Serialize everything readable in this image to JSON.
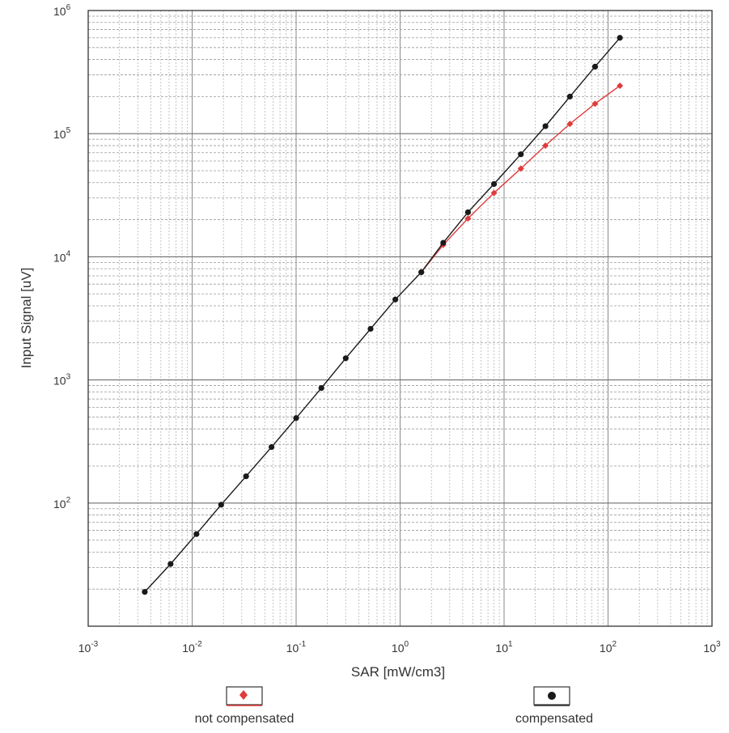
{
  "chart_data": {
    "type": "scatter",
    "x_scale": "log",
    "y_scale": "log",
    "xlim": [
      0.001,
      1000
    ],
    "ylim": [
      10,
      1000000
    ],
    "grid": true,
    "legend_position": "bottom",
    "xlabel": "SAR [mW/cm3]",
    "ylabel": "Input Signal [uV]",
    "x_ticks": [
      {
        "base": "10",
        "exp": "-3",
        "value": 0.001
      },
      {
        "base": "10",
        "exp": "-2",
        "value": 0.01
      },
      {
        "base": "10",
        "exp": "-1",
        "value": 0.1
      },
      {
        "base": "10",
        "exp": "0",
        "value": 1
      },
      {
        "base": "10",
        "exp": "1",
        "value": 10
      },
      {
        "base": "10",
        "exp": "2",
        "value": 100
      },
      {
        "base": "10",
        "exp": "3",
        "value": 1000
      }
    ],
    "y_ticks": [
      {
        "base": "10",
        "exp": "2",
        "value": 100
      },
      {
        "base": "10",
        "exp": "3",
        "value": 1000
      },
      {
        "base": "10",
        "exp": "4",
        "value": 10000
      },
      {
        "base": "10",
        "exp": "5",
        "value": 100000
      },
      {
        "base": "10",
        "exp": "6",
        "value": 1000000
      }
    ],
    "series": [
      {
        "name": "not compensated",
        "color": "#e03a3a",
        "marker": "diamond",
        "points": [
          [
            1.6,
            7500
          ],
          [
            2.6,
            12500
          ],
          [
            4.5,
            20500
          ],
          [
            8.0,
            33000
          ],
          [
            14.5,
            52000
          ],
          [
            25,
            80000
          ],
          [
            43,
            120000
          ],
          [
            75,
            175000
          ],
          [
            130,
            245000
          ]
        ]
      },
      {
        "name": "compensated",
        "color": "#1a1a1a",
        "marker": "circle",
        "points": [
          [
            0.0035,
            19
          ],
          [
            0.0062,
            32
          ],
          [
            0.011,
            56
          ],
          [
            0.019,
            97
          ],
          [
            0.033,
            165
          ],
          [
            0.058,
            285
          ],
          [
            0.1,
            490
          ],
          [
            0.175,
            860
          ],
          [
            0.3,
            1500
          ],
          [
            0.52,
            2600
          ],
          [
            0.9,
            4500
          ],
          [
            1.6,
            7500
          ],
          [
            2.6,
            13000
          ],
          [
            4.5,
            23000
          ],
          [
            8.0,
            39000
          ],
          [
            14.5,
            68000
          ],
          [
            25,
            115000
          ],
          [
            43,
            200000
          ],
          [
            75,
            350000
          ],
          [
            130,
            600000
          ]
        ]
      }
    ]
  },
  "legend": {
    "not_compensated_label": "not compensated",
    "compensated_label": "compensated"
  }
}
